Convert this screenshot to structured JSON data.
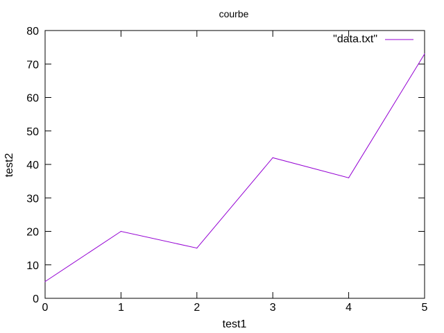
{
  "chart_data": {
    "type": "line",
    "title": "courbe",
    "xlabel": "test1",
    "ylabel": "test2",
    "xlim": [
      0,
      5
    ],
    "ylim": [
      0,
      80
    ],
    "xticks": [
      0,
      1,
      2,
      3,
      4,
      5
    ],
    "yticks": [
      0,
      10,
      20,
      30,
      40,
      50,
      60,
      70,
      80
    ],
    "grid": false,
    "legend_position": "top-right",
    "series": [
      {
        "name": "\"data.txt\"",
        "color": "#9400d3",
        "x": [
          0,
          1,
          2,
          3,
          4,
          5
        ],
        "y": [
          5,
          20,
          15,
          42,
          36,
          73
        ]
      }
    ]
  }
}
